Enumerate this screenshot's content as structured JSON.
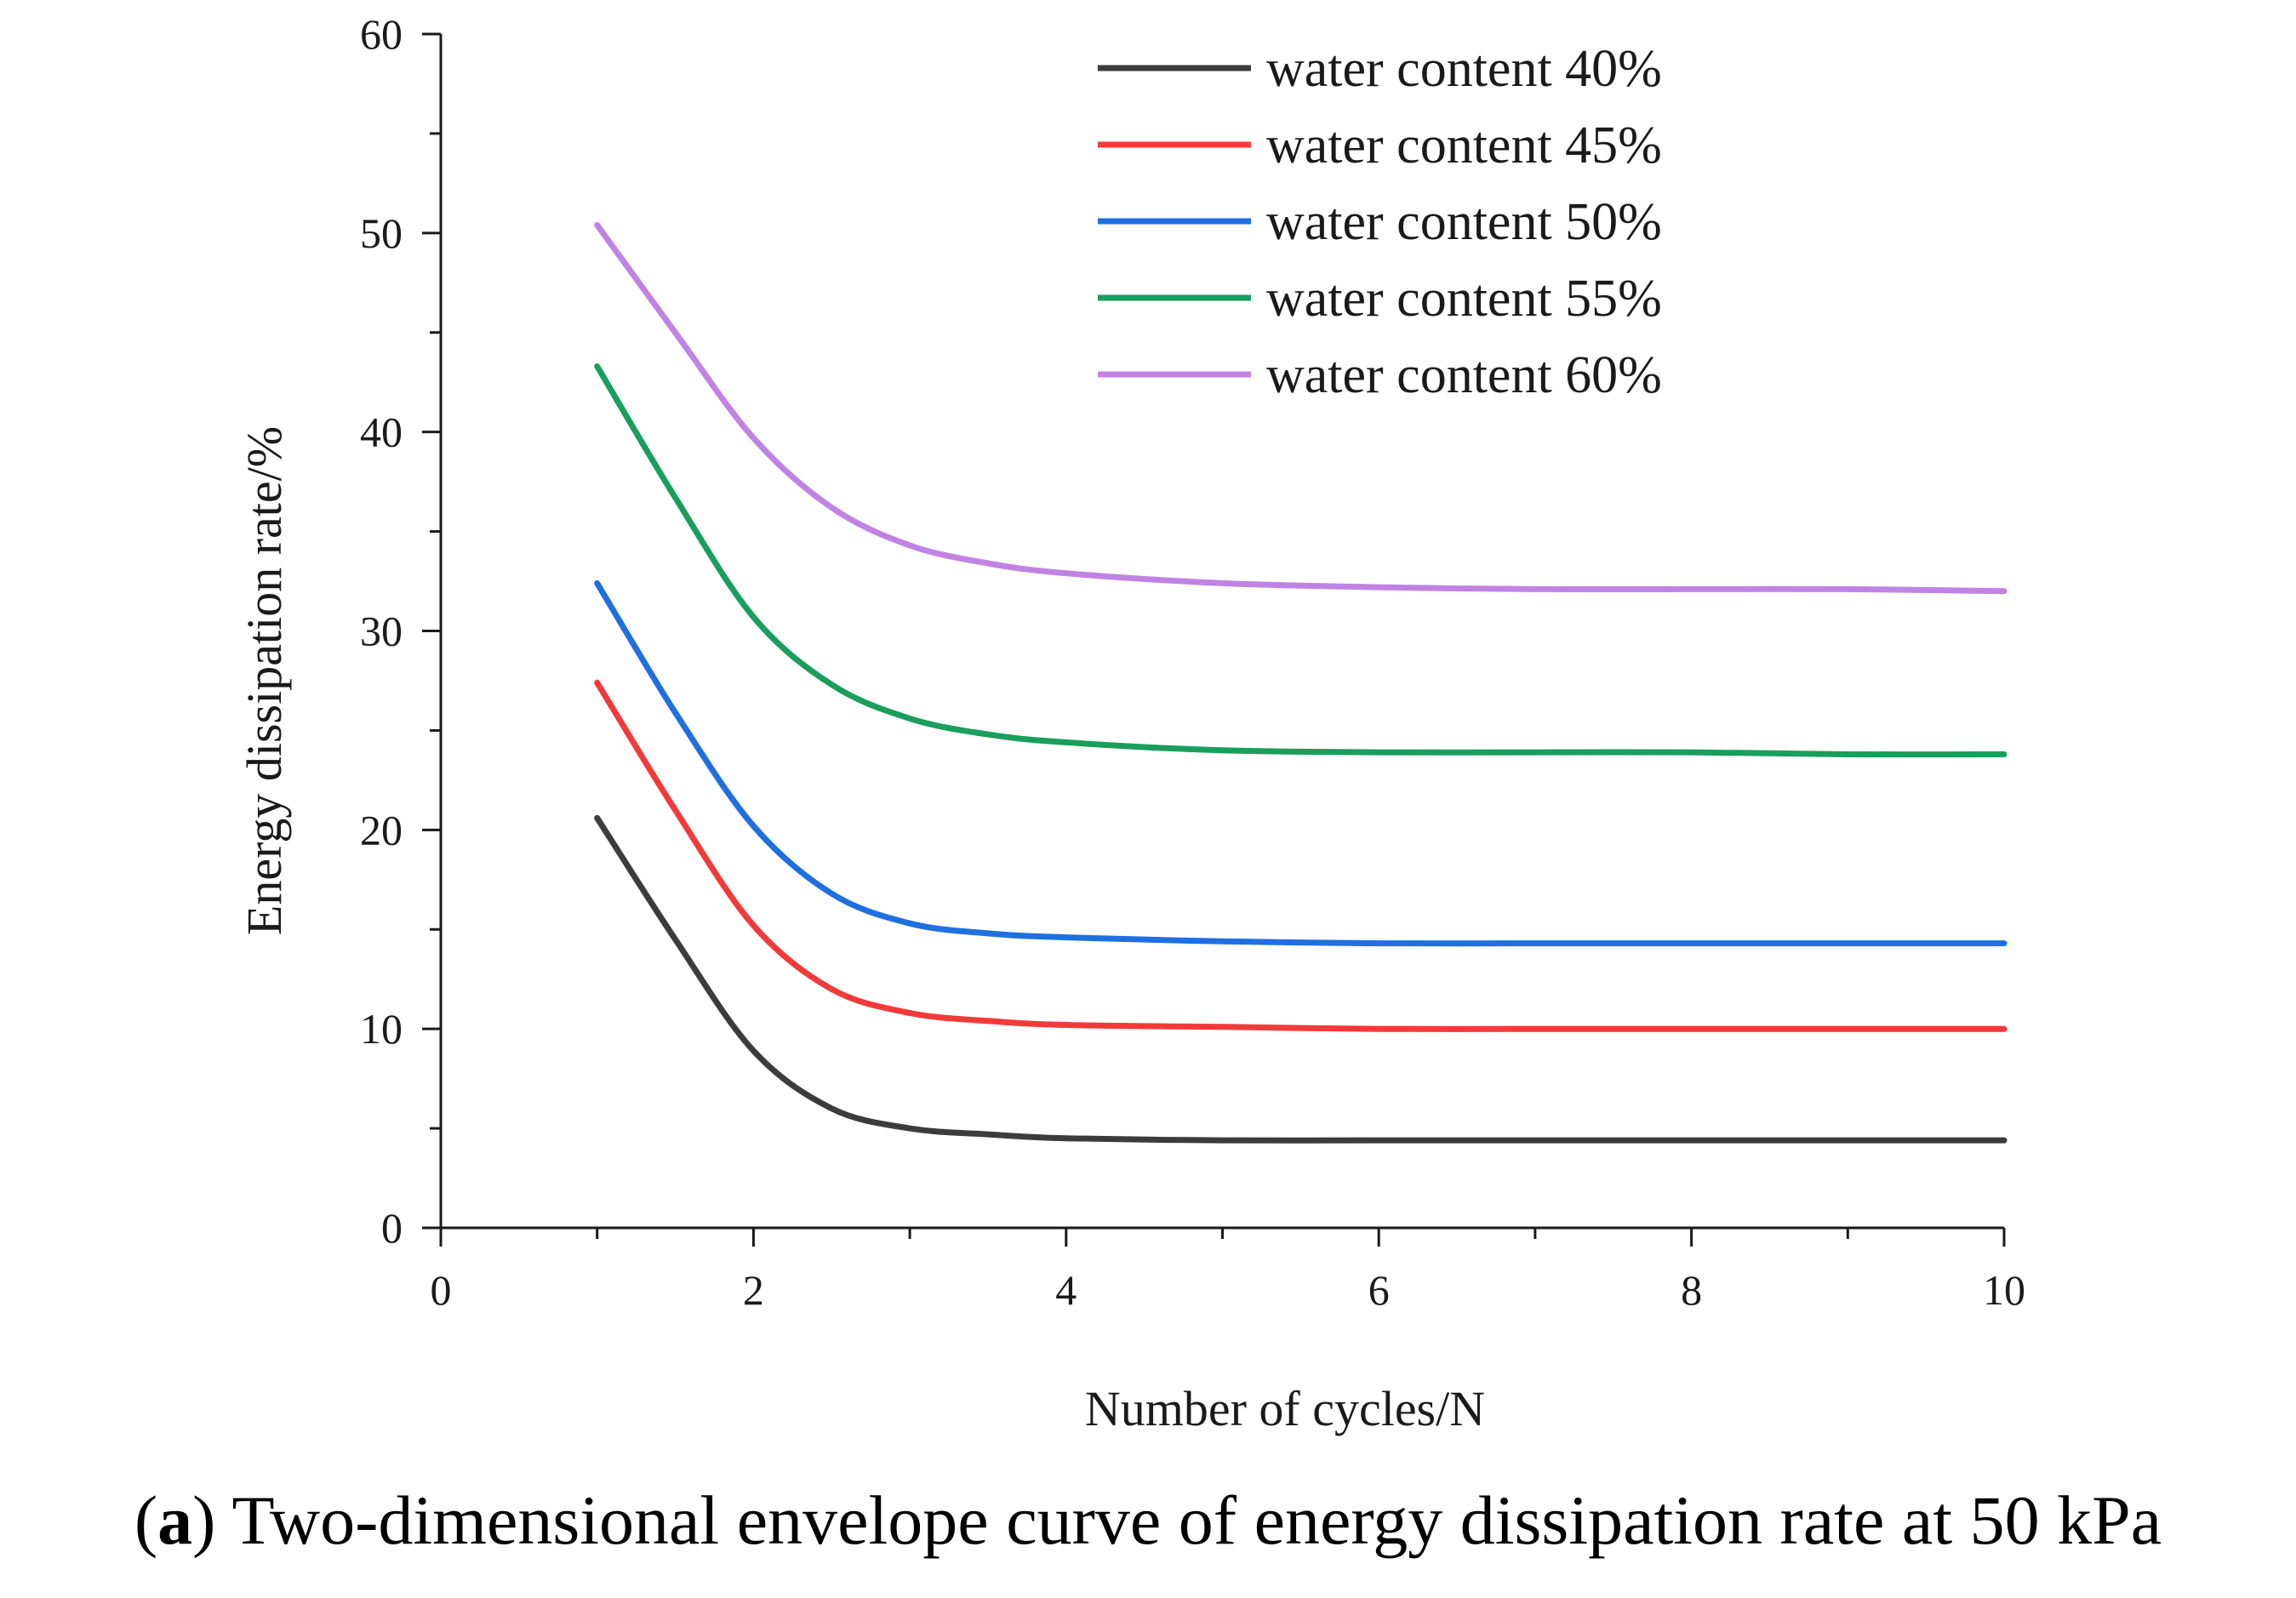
{
  "chart_data": {
    "type": "line",
    "title": "",
    "xlabel": "Number of cycles/N",
    "ylabel": "Energy dissipation rate/%",
    "xlim": [
      0,
      10
    ],
    "ylim": [
      0,
      60
    ],
    "xticks": [
      0,
      2,
      4,
      6,
      8,
      10
    ],
    "yticks": [
      0,
      10,
      20,
      30,
      40,
      50,
      60
    ],
    "x": [
      1,
      1.5,
      2,
      2.5,
      3,
      3.5,
      4,
      5,
      6,
      7,
      8,
      9,
      10
    ],
    "series": [
      {
        "name": "water content 40%",
        "color": "#3c3c3c",
        "values": [
          20.6,
          14.5,
          8.9,
          6.0,
          5.0,
          4.7,
          4.5,
          4.4,
          4.4,
          4.4,
          4.4,
          4.4,
          4.4
        ]
      },
      {
        "name": "water content 45%",
        "color": "#f23a3a",
        "values": [
          27.4,
          21.0,
          15.2,
          12.0,
          10.8,
          10.4,
          10.2,
          10.1,
          10.0,
          10.0,
          10.0,
          10.0,
          10.0
        ]
      },
      {
        "name": "water content 50%",
        "color": "#1f6fe0",
        "values": [
          32.4,
          25.9,
          20.2,
          16.8,
          15.3,
          14.8,
          14.6,
          14.4,
          14.3,
          14.3,
          14.3,
          14.3,
          14.3
        ]
      },
      {
        "name": "water content 55%",
        "color": "#1a9e5c",
        "values": [
          43.3,
          36.7,
          30.7,
          27.3,
          25.6,
          24.8,
          24.4,
          24.0,
          23.9,
          23.9,
          23.9,
          23.8,
          23.8
        ]
      },
      {
        "name": "water content 60%",
        "color": "#c083e3",
        "values": [
          50.4,
          45.0,
          39.7,
          36.2,
          34.3,
          33.4,
          32.9,
          32.4,
          32.2,
          32.1,
          32.1,
          32.1,
          32.0
        ]
      }
    ]
  },
  "caption": {
    "label": "a",
    "text": "Two-dimensional envelope curve of energy dissipation rate at 50 kPa"
  }
}
